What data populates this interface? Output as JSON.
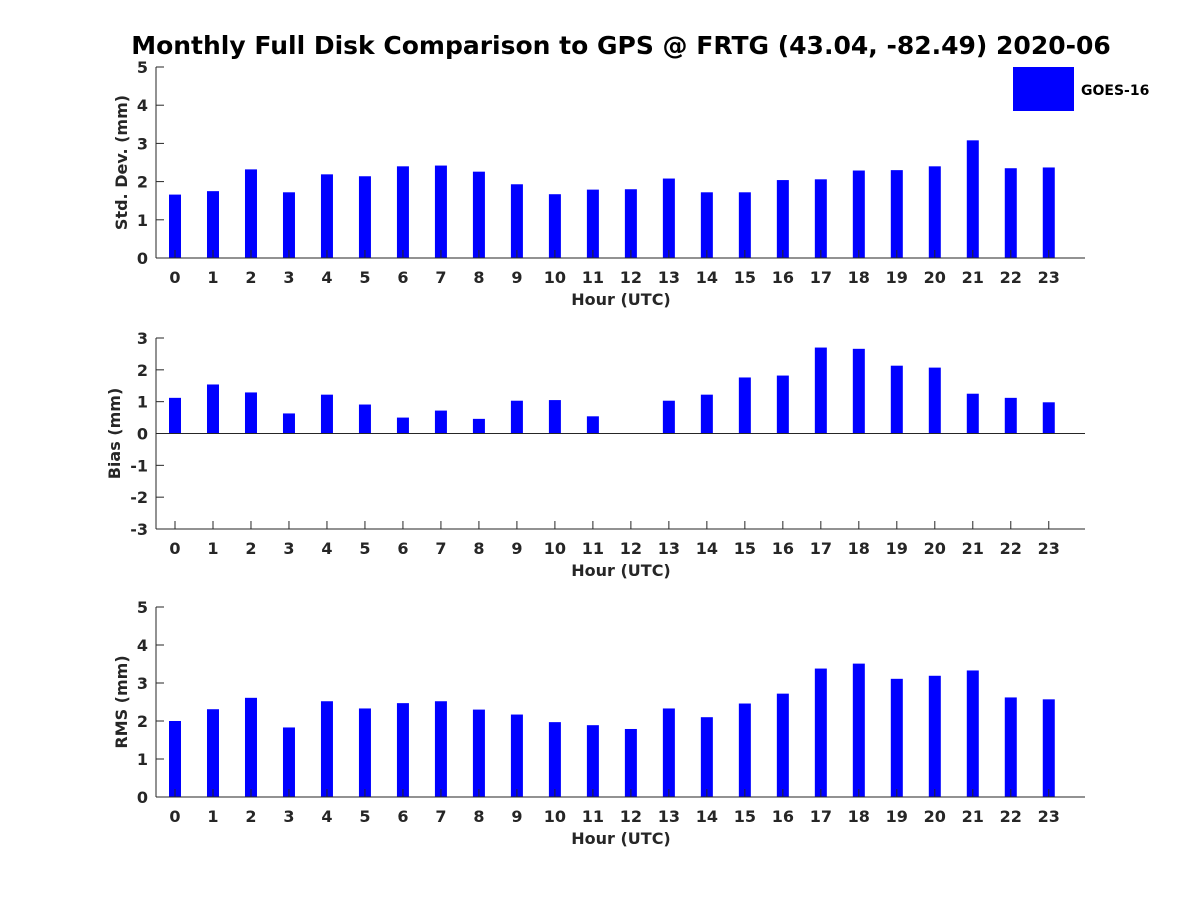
{
  "chart_data": {
    "title": "Monthly Full Disk Comparison to GPS @ FRTG (43.04, -82.49) 2020-06",
    "legend": {
      "series": [
        "GOES-16"
      ],
      "placement": "top-right",
      "color": "#0000ff"
    },
    "charts": [
      {
        "type": "bar",
        "xlabel": "Hour (UTC)",
        "ylabel": "Std. Dev. (mm)",
        "ylim": [
          0,
          5
        ],
        "yticks": [
          "0",
          "1",
          "2",
          "3",
          "4",
          "5"
        ],
        "categories": [
          "0",
          "1",
          "2",
          "3",
          "4",
          "5",
          "6",
          "7",
          "8",
          "9",
          "10",
          "11",
          "12",
          "13",
          "14",
          "15",
          "16",
          "17",
          "18",
          "19",
          "20",
          "21",
          "22",
          "23"
        ],
        "series": [
          {
            "name": "GOES-16",
            "values": [
              1.66,
              1.75,
              2.32,
              1.72,
              2.19,
              2.14,
              2.4,
              2.42,
              2.26,
              1.93,
              1.67,
              1.79,
              1.8,
              2.08,
              1.72,
              1.72,
              2.04,
              2.06,
              2.29,
              2.3,
              2.4,
              3.08,
              2.35,
              2.37
            ]
          }
        ]
      },
      {
        "type": "bar",
        "xlabel": "Hour (UTC)",
        "ylabel": "Bias (mm)",
        "ylim": [
          -3,
          3
        ],
        "yticks": [
          "-3",
          "-2",
          "-1",
          "0",
          "1",
          "2",
          "3"
        ],
        "categories": [
          "0",
          "1",
          "2",
          "3",
          "4",
          "5",
          "6",
          "7",
          "8",
          "9",
          "10",
          "11",
          "12",
          "13",
          "14",
          "15",
          "16",
          "17",
          "18",
          "19",
          "20",
          "21",
          "22",
          "23"
        ],
        "series": [
          {
            "name": "GOES-16",
            "values": [
              1.12,
              1.54,
              1.29,
              0.63,
              1.22,
              0.91,
              0.5,
              0.72,
              0.46,
              1.03,
              1.05,
              0.54,
              0,
              1.03,
              1.22,
              1.76,
              1.82,
              2.7,
              2.66,
              2.13,
              2.07,
              1.25,
              1.12,
              0.98
            ]
          }
        ]
      },
      {
        "type": "bar",
        "xlabel": "Hour (UTC)",
        "ylabel": "RMS (mm)",
        "ylim": [
          0,
          5
        ],
        "yticks": [
          "0",
          "1",
          "2",
          "3",
          "4",
          "5"
        ],
        "categories": [
          "0",
          "1",
          "2",
          "3",
          "4",
          "5",
          "6",
          "7",
          "8",
          "9",
          "10",
          "11",
          "12",
          "13",
          "14",
          "15",
          "16",
          "17",
          "18",
          "19",
          "20",
          "21",
          "22",
          "23"
        ],
        "series": [
          {
            "name": "GOES-16",
            "values": [
              2.0,
              2.31,
              2.61,
              1.83,
              2.52,
              2.33,
              2.47,
              2.52,
              2.3,
              2.17,
              1.97,
              1.89,
              1.79,
              2.33,
              2.1,
              2.46,
              2.72,
              3.38,
              3.51,
              3.11,
              3.19,
              3.33,
              2.62,
              2.57
            ]
          }
        ]
      }
    ]
  }
}
